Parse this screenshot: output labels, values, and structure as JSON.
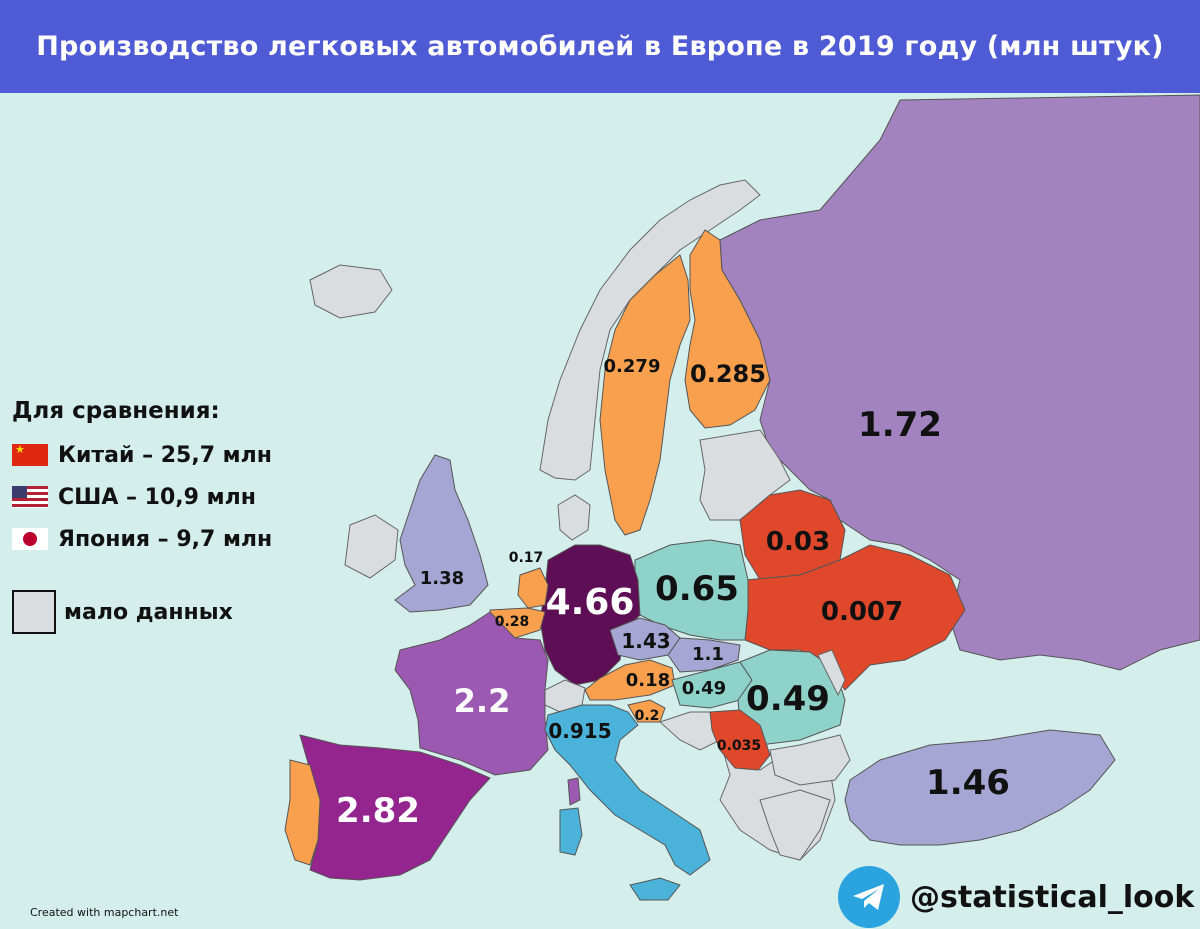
{
  "title": "Производство легковых автомобилей в Европе в 2019 году (млн штук)",
  "colors": {
    "background_sea": "#d4eeec",
    "header_bg": "#4f5bd5",
    "no_data": "#d9dde0",
    "orange": "#f9a04f",
    "red_orange": "#e0482b",
    "teal": "#8ed2c9",
    "lavender": "#a5a6d3",
    "purple": "#9c59b1",
    "magenta": "#94248e",
    "dark_purple": "#5e0e55",
    "russia_purple": "#a283c0",
    "blue": "#4bb3d9"
  },
  "legend": {
    "title": "Для сравнения:",
    "items": [
      {
        "flag": "china-flag-icon",
        "label": "Китай – 25,7 млн"
      },
      {
        "flag": "usa-flag-icon",
        "label": "США – 10,9 млн"
      },
      {
        "flag": "japan-flag-icon",
        "label": "Япония – 9,7 млн"
      }
    ],
    "no_data_label": "мало данных"
  },
  "values": {
    "russia": "1.72",
    "sweden": "0.279",
    "finland": "0.285",
    "uk": "1.38",
    "netherlands": "0.17",
    "belgium": "0.28",
    "germany": "4.66",
    "poland": "0.65",
    "belarus": "0.03",
    "ukraine": "0.007",
    "czechia": "1.43",
    "slovakia": "1.1",
    "austria": "0.18",
    "hungary": "0.49",
    "romania": "0.49",
    "slovenia": "0.2",
    "serbia": "0.035",
    "france": "2.2",
    "italy": "0.915",
    "spain": "2.82",
    "turkey": "1.46"
  },
  "credit": "Created with mapchart.net",
  "telegram_handle": "@statistical_look"
}
